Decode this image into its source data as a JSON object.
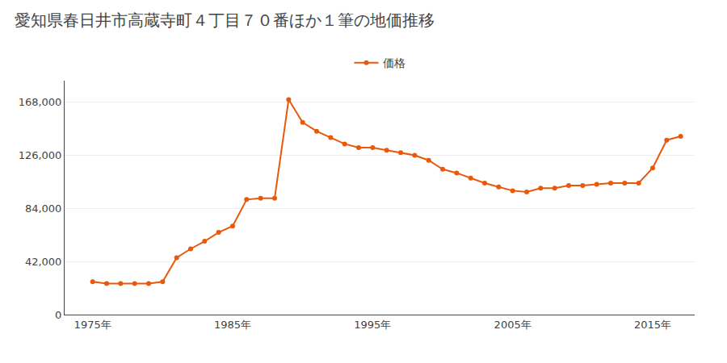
{
  "chart_data": {
    "type": "line",
    "title": "愛知県春日井市高蔵寺町４丁目７０番ほか１筆の地価推移",
    "x": [
      1975,
      1976,
      1977,
      1978,
      1979,
      1980,
      1981,
      1982,
      1983,
      1984,
      1985,
      1986,
      1987,
      1988,
      1989,
      1990,
      1991,
      1992,
      1993,
      1994,
      1995,
      1996,
      1997,
      1998,
      1999,
      2000,
      2001,
      2002,
      2003,
      2004,
      2005,
      2006,
      2007,
      2008,
      2009,
      2010,
      2011,
      2012,
      2013,
      2014,
      2015,
      2016,
      2017
    ],
    "series": [
      {
        "name": "価格",
        "color": "#E8590C",
        "marker": "circle",
        "values": [
          26000,
          24500,
          24500,
          24500,
          24500,
          26000,
          45000,
          52000,
          58000,
          65000,
          70000,
          91000,
          92000,
          92000,
          170000,
          152000,
          145000,
          140000,
          135000,
          132000,
          132000,
          130000,
          128000,
          126000,
          122000,
          115000,
          112000,
          108000,
          104000,
          101000,
          98000,
          97000,
          100000,
          100000,
          102000,
          102000,
          103000,
          104000,
          104000,
          104000,
          116000,
          138000,
          141000
        ]
      }
    ],
    "xlim": [
      1973,
      2018
    ],
    "xticks": [
      {
        "value": 1975,
        "label": "1975年"
      },
      {
        "value": 1985,
        "label": "1985年"
      },
      {
        "value": 1995,
        "label": "1995年"
      },
      {
        "value": 2005,
        "label": "2005年"
      },
      {
        "value": 2015,
        "label": "2015年"
      }
    ],
    "ylim": [
      0,
      185000
    ],
    "yticks": [
      0,
      {
        "value": 42000,
        "label": "42,000"
      },
      {
        "value": 84000,
        "label": "84,000"
      },
      {
        "value": 126000,
        "label": "126,000"
      },
      {
        "value": 168000,
        "label": "168,000"
      }
    ],
    "grid": true,
    "legend": "top"
  }
}
